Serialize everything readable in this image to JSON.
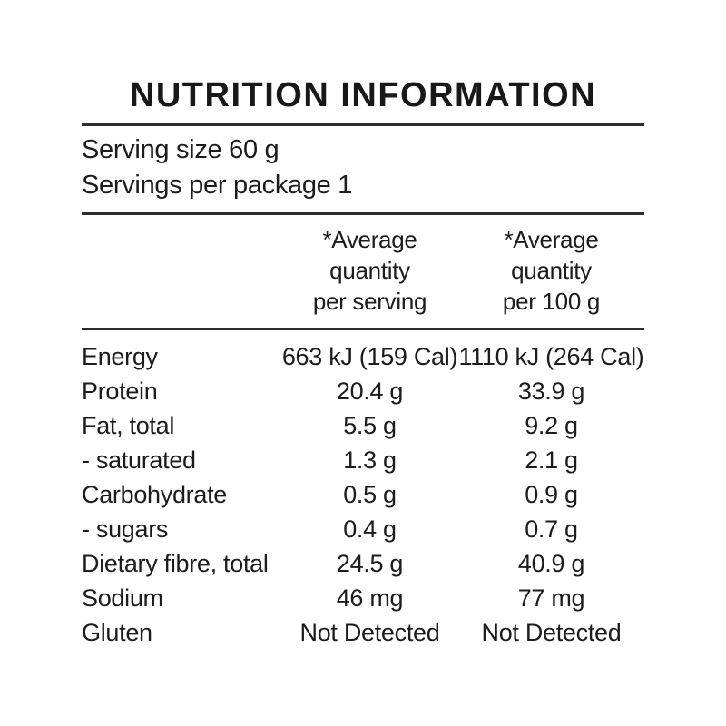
{
  "title": "NUTRITION INFORMATION",
  "serving_info": {
    "serving_size": "Serving size 60 g",
    "servings_per_package": "Servings per package 1"
  },
  "table": {
    "columns": [
      {
        "header": "*Average\nquantity\nper serving"
      },
      {
        "header": "*Average\nquantity\nper 100 g"
      }
    ],
    "rows": [
      {
        "label": "Energy",
        "per_serving": "663 kJ (159 Cal)",
        "per_100g": "1110 kJ (264 Cal)"
      },
      {
        "label": "Protein",
        "per_serving": "20.4 g",
        "per_100g": "33.9 g"
      },
      {
        "label": "Fat, total",
        "per_serving": "5.5 g",
        "per_100g": "9.2 g"
      },
      {
        "label": "- saturated",
        "per_serving": "1.3 g",
        "per_100g": "2.1 g"
      },
      {
        "label": "Carbohydrate",
        "per_serving": "0.5 g",
        "per_100g": "0.9 g"
      },
      {
        "label": "- sugars",
        "per_serving": "0.4 g",
        "per_100g": "0.7 g"
      },
      {
        "label": "Dietary fibre, total",
        "per_serving": "24.5 g",
        "per_100g": "40.9 g"
      },
      {
        "label": "Sodium",
        "per_serving": "46 mg",
        "per_100g": "77 mg"
      },
      {
        "label": "Gluten",
        "per_serving": "Not Detected",
        "per_100g": "Not Detected"
      }
    ]
  },
  "colors": {
    "background": "#ffffff",
    "text": "#1c1c1c",
    "rule": "#2d2d2d"
  }
}
